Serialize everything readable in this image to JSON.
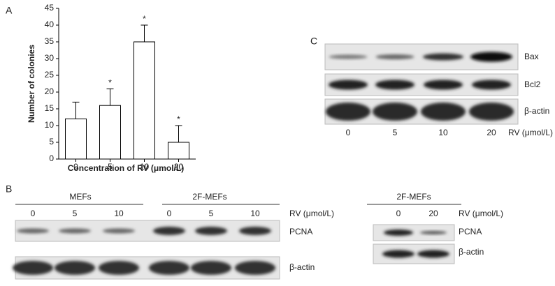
{
  "chart_data": {
    "type": "bar",
    "panel": "A",
    "categories": [
      "0",
      "5",
      "10",
      "20"
    ],
    "values": [
      12,
      16,
      35,
      5
    ],
    "errors": [
      5,
      5,
      5,
      5
    ],
    "significance": [
      null,
      "*",
      "*",
      "*"
    ],
    "xlabel": "Concentration of RV (μmol/L)",
    "ylabel": "Number of colonies",
    "ylim": [
      0,
      45
    ],
    "yticks": [
      0,
      5,
      10,
      15,
      20,
      25,
      30,
      35,
      40,
      45
    ],
    "color": "#ffffff",
    "grid": false
  },
  "panel_b": {
    "panel": "B",
    "left": {
      "groups": [
        "MEFs",
        "2F-MEFs"
      ],
      "lanes": [
        "0",
        "5",
        "10",
        "0",
        "5",
        "10"
      ],
      "treatment": "RV (μmol/L)",
      "rows": [
        "PCNA",
        "β-actin"
      ]
    },
    "right": {
      "group": "2F-MEFs",
      "lanes": [
        "0",
        "20"
      ],
      "treatment": "RV (μmol/L)",
      "rows": [
        "PCNA",
        "β-actin"
      ]
    }
  },
  "panel_c": {
    "panel": "C",
    "lanes": [
      "0",
      "5",
      "10",
      "20"
    ],
    "treatment": "RV (μmol/L)",
    "rows": [
      "Bax",
      "Bcl2",
      "β-actin"
    ]
  }
}
